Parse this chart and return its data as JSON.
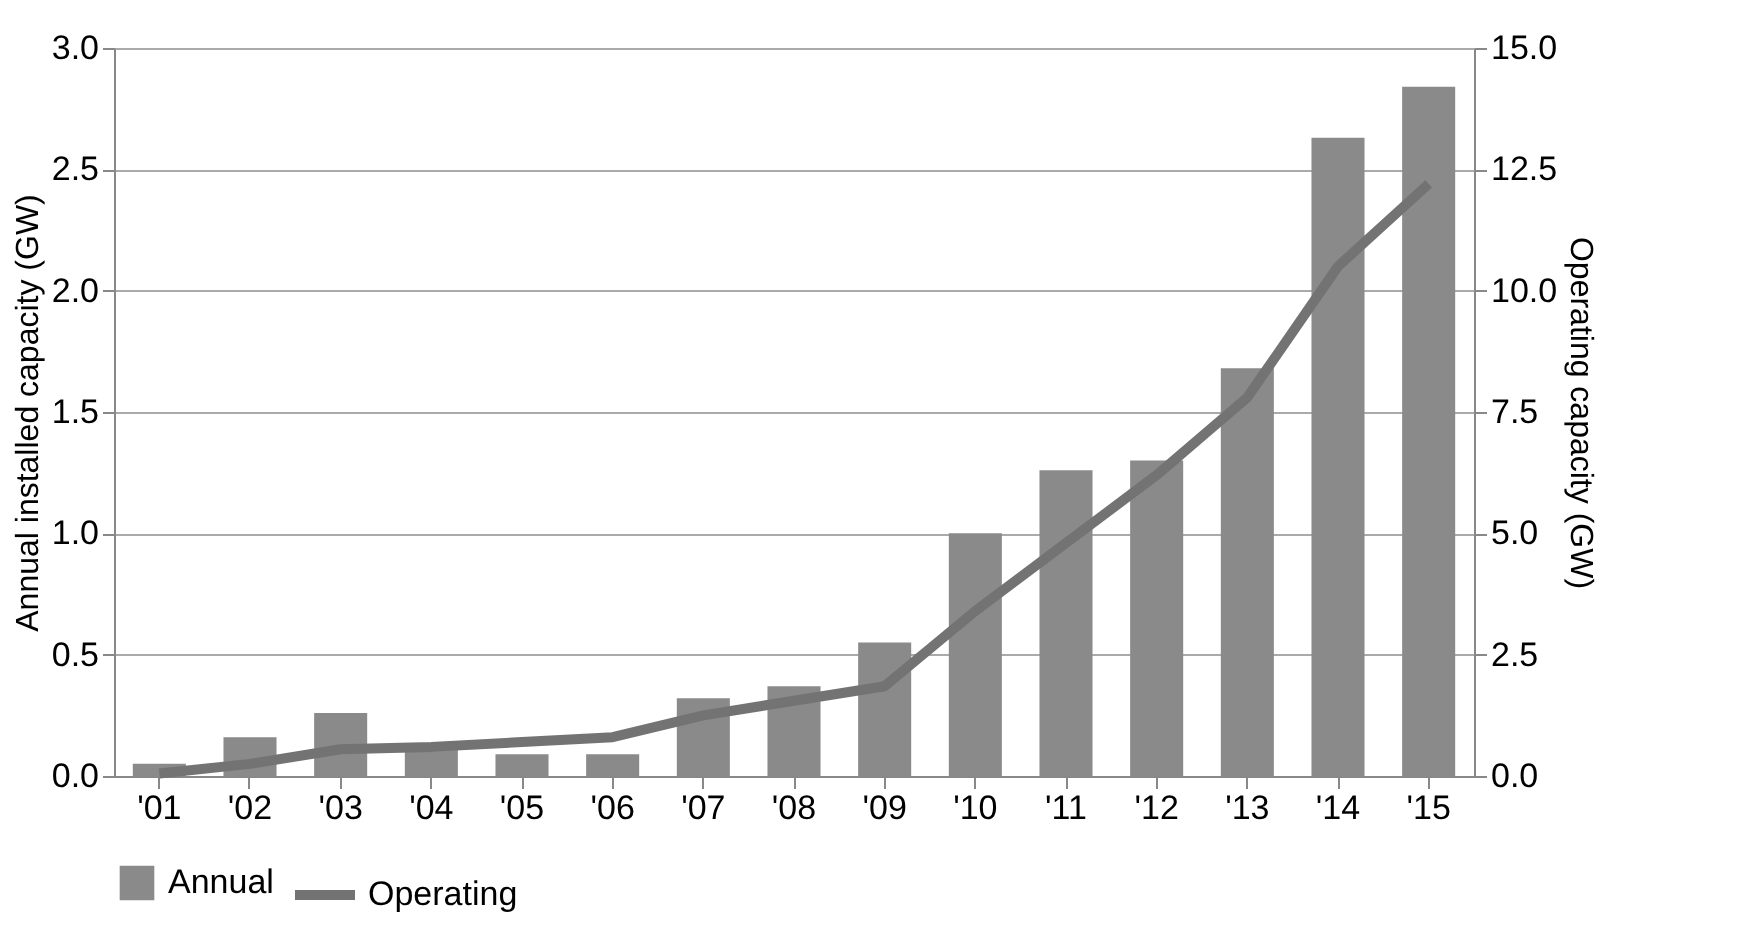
{
  "chart_data": {
    "type": "bar",
    "ylabel": "Annual installed capacity (GW)",
    "y2label": "Operating capacity (GW)",
    "categories": [
      "'01",
      "'02",
      "'03",
      "'04",
      "'05",
      "'06",
      "'07",
      "'08",
      "'09",
      "'10",
      "'11",
      "'12",
      "'13",
      "'14",
      "'15"
    ],
    "series": [
      {
        "name": "Annual",
        "color": "#8a8a8a",
        "values": [
          0.05,
          0.16,
          0.26,
          0.12,
          0.09,
          0.09,
          0.32,
          0.37,
          0.55,
          1.0,
          1.26,
          1.3,
          1.68,
          2.63,
          2.84
        ]
      },
      {
        "name": "Operating",
        "type": "line",
        "axis": "y2",
        "color": "#737373",
        "values": [
          0.05,
          0.25,
          0.55,
          0.6,
          0.7,
          0.8,
          1.25,
          1.55,
          1.85,
          3.4,
          4.8,
          6.2,
          7.8,
          10.5,
          12.2
        ]
      }
    ],
    "ylim": [
      0,
      3.0
    ],
    "yticks": [
      {
        "value": 0,
        "label": "0.0"
      },
      {
        "value": 0.5,
        "label": "0.5"
      },
      {
        "value": 1,
        "label": "1.0"
      },
      {
        "value": 1.5,
        "label": "1.5"
      },
      {
        "value": 2,
        "label": "2.0"
      },
      {
        "value": 2.5,
        "label": "2.5"
      },
      {
        "value": 3,
        "label": "3.0"
      }
    ],
    "y2lim": [
      0,
      15.0
    ],
    "y2ticks": [
      {
        "value": 0,
        "label": "0.0"
      },
      {
        "value": 2.5,
        "label": "2.5"
      },
      {
        "value": 5,
        "label": "5.0"
      },
      {
        "value": 7.5,
        "label": "7.5"
      },
      {
        "value": 10,
        "label": "10.0"
      },
      {
        "value": 12.5,
        "label": "12.5"
      },
      {
        "value": 15,
        "label": "15.0"
      }
    ],
    "grid": "y",
    "legend": "bottom"
  }
}
